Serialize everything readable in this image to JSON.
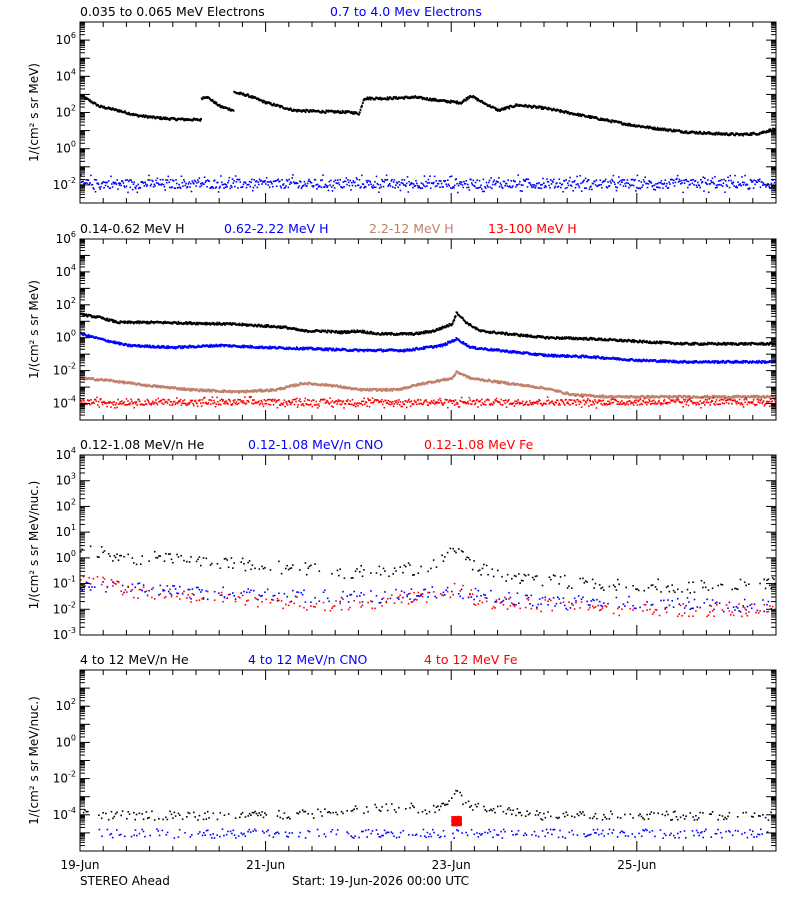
{
  "colors": {
    "black": "#000000",
    "blue": "#0000ff",
    "tan": "#c0806a",
    "red": "#ff0000"
  },
  "footer": {
    "spacecraft": "STEREO Ahead",
    "start": "Start: 19-Jun-2026 00:00 UTC"
  },
  "chart_data": [
    {
      "type": "scatter",
      "panel": "electrons",
      "legend": [
        {
          "text": "0.035 to 0.065 MeV Electrons",
          "color": "#000000"
        },
        {
          "text": "0.7 to 4.0 Mev Electrons",
          "color": "#0000ff"
        }
      ],
      "ylabel": "1/(cm² s sr MeV)",
      "yscale": "log",
      "ylim": [
        0.001,
        10000000.0
      ],
      "yticks": [
        {
          "value": 0.01,
          "base": "10",
          "exp": "-2"
        },
        {
          "value": 1.0,
          "base": "10",
          "exp": "0"
        },
        {
          "value": 100.0,
          "base": "10",
          "exp": "2"
        },
        {
          "value": 10000.0,
          "base": "10",
          "exp": "4"
        },
        {
          "value": 1000000.0,
          "base": "10",
          "exp": "6"
        }
      ],
      "xlim_days": [
        0,
        7.5
      ],
      "series": [
        {
          "name": "0.035 to 0.065 MeV Electrons",
          "color": "#000000",
          "points": [
            [
              0,
              1000
            ],
            [
              0.1,
              500
            ],
            [
              0.2,
              250
            ],
            [
              0.4,
              150
            ],
            [
              0.6,
              80
            ],
            [
              0.8,
              60
            ],
            [
              1.0,
              50
            ],
            [
              1.3,
              45
            ],
            [
              1.3,
              700
            ],
            [
              1.35,
              900
            ],
            [
              1.5,
              250
            ],
            [
              1.65,
              150
            ],
            [
              1.65,
              1500
            ],
            [
              1.8,
              1000
            ],
            [
              2.0,
              400
            ],
            [
              2.3,
              150
            ],
            [
              2.6,
              130
            ],
            [
              2.9,
              120
            ],
            [
              3.0,
              100
            ],
            [
              3.05,
              700
            ],
            [
              3.3,
              700
            ],
            [
              3.6,
              800
            ],
            [
              3.9,
              500
            ],
            [
              4.1,
              400
            ],
            [
              4.2,
              1000
            ],
            [
              4.3,
              500
            ],
            [
              4.5,
              150
            ],
            [
              4.7,
              300
            ],
            [
              5.0,
              200
            ],
            [
              5.3,
              100
            ],
            [
              5.6,
              50
            ],
            [
              5.9,
              25
            ],
            [
              6.2,
              15
            ],
            [
              6.5,
              10
            ],
            [
              6.8,
              8
            ],
            [
              7.1,
              7
            ],
            [
              7.3,
              8
            ],
            [
              7.5,
              15
            ]
          ]
        },
        {
          "name": "0.7 to 4.0 Mev Electrons",
          "color": "#0000ff",
          "points": [
            [
              0,
              0.02
            ],
            [
              1,
              0.02
            ],
            [
              2,
              0.019
            ],
            [
              3,
              0.018
            ],
            [
              4,
              0.018
            ],
            [
              5,
              0.017
            ],
            [
              6,
              0.017
            ],
            [
              7,
              0.016
            ],
            [
              7.5,
              0.016
            ]
          ],
          "scatter_band": [
            0.004,
            0.04
          ]
        }
      ]
    },
    {
      "type": "scatter",
      "panel": "protons",
      "legend": [
        {
          "text": "0.14-0.62 MeV H",
          "color": "#000000"
        },
        {
          "text": "0.62-2.22 MeV H",
          "color": "#0000ff"
        },
        {
          "text": "2.2-12 MeV H",
          "color": "#c0806a"
        },
        {
          "text": "13-100 MeV H",
          "color": "#ff0000"
        }
      ],
      "ylabel": "1/(cm² s sr MeV)",
      "yscale": "log",
      "ylim": [
        1e-05,
        1000000.0
      ],
      "yticks": [
        {
          "value": 0.0001,
          "base": "10",
          "exp": "-4"
        },
        {
          "value": 0.01,
          "base": "10",
          "exp": "-2"
        },
        {
          "value": 1.0,
          "base": "10",
          "exp": "0"
        },
        {
          "value": 100.0,
          "base": "10",
          "exp": "2"
        },
        {
          "value": 10000.0,
          "base": "10",
          "exp": "4"
        },
        {
          "value": 1000000.0,
          "base": "10",
          "exp": "6"
        }
      ],
      "xlim_days": [
        0,
        7.5
      ],
      "series": [
        {
          "name": "0.14-0.62 MeV H",
          "color": "#000000",
          "points": [
            [
              0,
              30
            ],
            [
              0.2,
              20
            ],
            [
              0.4,
              10
            ],
            [
              0.8,
              10
            ],
            [
              1.2,
              9
            ],
            [
              1.6,
              8
            ],
            [
              2.0,
              6
            ],
            [
              2.2,
              5
            ],
            [
              2.4,
              3
            ],
            [
              2.6,
              3
            ],
            [
              2.8,
              2.5
            ],
            [
              3.0,
              3
            ],
            [
              3.2,
              2
            ],
            [
              3.4,
              2
            ],
            [
              3.6,
              2
            ],
            [
              3.8,
              3
            ],
            [
              4.0,
              8
            ],
            [
              4.05,
              40
            ],
            [
              4.15,
              10
            ],
            [
              4.3,
              3
            ],
            [
              4.6,
              2
            ],
            [
              5.0,
              1.2
            ],
            [
              5.5,
              1
            ],
            [
              6.0,
              0.7
            ],
            [
              6.5,
              0.5
            ],
            [
              7.0,
              0.5
            ],
            [
              7.5,
              0.5
            ]
          ]
        },
        {
          "name": "0.62-2.22 MeV H",
          "color": "#0000ff",
          "points": [
            [
              0,
              2
            ],
            [
              0.2,
              1
            ],
            [
              0.5,
              0.4
            ],
            [
              1.0,
              0.3
            ],
            [
              1.5,
              0.4
            ],
            [
              2.0,
              0.3
            ],
            [
              2.5,
              0.25
            ],
            [
              3.0,
              0.2
            ],
            [
              3.5,
              0.2
            ],
            [
              3.9,
              0.4
            ],
            [
              4.05,
              1
            ],
            [
              4.2,
              0.3
            ],
            [
              4.5,
              0.2
            ],
            [
              5.0,
              0.1
            ],
            [
              5.5,
              0.08
            ],
            [
              6.0,
              0.05
            ],
            [
              6.5,
              0.04
            ],
            [
              7.0,
              0.04
            ],
            [
              7.5,
              0.04
            ]
          ]
        },
        {
          "name": "2.2-12 MeV H",
          "color": "#c0806a",
          "points": [
            [
              0,
              0.004
            ],
            [
              0.3,
              0.003
            ],
            [
              0.7,
              0.0015
            ],
            [
              1.2,
              0.0008
            ],
            [
              1.7,
              0.0006
            ],
            [
              2.1,
              0.0008
            ],
            [
              2.4,
              0.002
            ],
            [
              2.7,
              0.0015
            ],
            [
              3.0,
              0.0008
            ],
            [
              3.4,
              0.0008
            ],
            [
              3.7,
              0.002
            ],
            [
              4.0,
              0.004
            ],
            [
              4.05,
              0.01
            ],
            [
              4.2,
              0.004
            ],
            [
              4.6,
              0.002
            ],
            [
              5.0,
              0.001
            ],
            [
              5.3,
              0.0004
            ],
            [
              5.7,
              0.0003
            ],
            [
              6.5,
              0.0003
            ],
            [
              7.5,
              0.0003
            ]
          ]
        },
        {
          "name": "13-100 MeV H",
          "color": "#ff0000",
          "points": [
            [
              0,
              0.0002
            ],
            [
              2,
              0.0002
            ],
            [
              4,
              0.0002
            ],
            [
              6,
              0.0002
            ],
            [
              7.5,
              0.0002
            ]
          ],
          "scatter_band": [
            6e-05,
            0.0003
          ]
        }
      ]
    },
    {
      "type": "scatter",
      "panel": "low-energy-heavy",
      "legend": [
        {
          "text": "0.12-1.08 MeV/n He",
          "color": "#000000"
        },
        {
          "text": "0.12-1.08 MeV/n CNO",
          "color": "#0000ff"
        },
        {
          "text": "0.12-1.08 MeV Fe",
          "color": "#ff0000"
        }
      ],
      "ylabel": "1/(cm² s sr MeV/nuc.)",
      "yscale": "log",
      "ylim": [
        0.001,
        10000.0
      ],
      "yticks": [
        {
          "value": 0.001,
          "base": "10",
          "exp": "-3"
        },
        {
          "value": 0.01,
          "base": "10",
          "exp": "-2"
        },
        {
          "value": 0.1,
          "base": "10",
          "exp": "-1"
        },
        {
          "value": 1.0,
          "base": "10",
          "exp": "0"
        },
        {
          "value": 10.0,
          "base": "10",
          "exp": "1"
        },
        {
          "value": 100.0,
          "base": "10",
          "exp": "2"
        },
        {
          "value": 1000.0,
          "base": "10",
          "exp": "3"
        },
        {
          "value": 10000.0,
          "base": "10",
          "exp": "4"
        }
      ],
      "xlim_days": [
        0,
        7.5
      ],
      "series": [
        {
          "name": "0.12-1.08 MeV/n He",
          "color": "#000000",
          "points": [
            [
              0,
              3
            ],
            [
              0.2,
              2
            ],
            [
              0.4,
              1
            ],
            [
              0.6,
              0.7
            ],
            [
              0.8,
              1.2
            ],
            [
              1.0,
              1
            ],
            [
              1.3,
              0.8
            ],
            [
              1.6,
              0.7
            ],
            [
              2.0,
              0.5
            ],
            [
              2.4,
              0.4
            ],
            [
              2.8,
              0.3
            ],
            [
              3.2,
              0.3
            ],
            [
              3.6,
              0.4
            ],
            [
              3.9,
              0.8
            ],
            [
              4.05,
              2.5
            ],
            [
              4.2,
              0.6
            ],
            [
              4.5,
              0.2
            ],
            [
              5.0,
              0.15
            ],
            [
              5.5,
              0.1
            ],
            [
              6.0,
              0.1
            ],
            [
              6.5,
              0.08
            ],
            [
              7.0,
              0.1
            ],
            [
              7.5,
              0.1
            ]
          ]
        },
        {
          "name": "0.12-1.08 MeV/n CNO",
          "color": "#0000ff",
          "points": [
            [
              0,
              0.1
            ],
            [
              1,
              0.05
            ],
            [
              2,
              0.04
            ],
            [
              3,
              0.03
            ],
            [
              4,
              0.05
            ],
            [
              5,
              0.02
            ],
            [
              6,
              0.02
            ],
            [
              7,
              0.015
            ],
            [
              7.5,
              0.015
            ]
          ]
        },
        {
          "name": "0.12-1.08 MeV Fe",
          "color": "#ff0000",
          "points": [
            [
              0,
              0.15
            ],
            [
              0.3,
              0.1
            ],
            [
              0.6,
              0.05
            ],
            [
              1,
              0.04
            ],
            [
              2,
              0.02
            ],
            [
              3,
              0.015
            ],
            [
              4,
              0.05
            ],
            [
              4.05,
              0.1
            ],
            [
              4.3,
              0.02
            ],
            [
              5,
              0.015
            ],
            [
              6,
              0.01
            ],
            [
              7,
              0.01
            ],
            [
              7.5,
              0.01
            ]
          ]
        }
      ]
    },
    {
      "type": "scatter",
      "panel": "high-energy-heavy",
      "legend": [
        {
          "text": "4 to 12 MeV/n He",
          "color": "#000000"
        },
        {
          "text": "4 to 12 MeV/n CNO",
          "color": "#0000ff"
        },
        {
          "text": "4 to 12 MeV Fe",
          "color": "#ff0000"
        }
      ],
      "ylabel": "1/(cm² s sr MeV/nuc.)",
      "yscale": "log",
      "ylim": [
        1e-06,
        10000.0
      ],
      "yticks": [
        {
          "value": 0.0001,
          "base": "10",
          "exp": "-4"
        },
        {
          "value": 0.01,
          "base": "10",
          "exp": "-2"
        },
        {
          "value": 1.0,
          "base": "10",
          "exp": "0"
        },
        {
          "value": 100.0,
          "base": "10",
          "exp": "2"
        }
      ],
      "xlim_days": [
        0,
        7.5
      ],
      "series": [
        {
          "name": "4 to 12 MeV/n He",
          "color": "#000000",
          "points": [
            [
              0,
              0.0002
            ],
            [
              0.3,
              0.0001
            ],
            [
              1,
              0.0001
            ],
            [
              2,
              0.0001
            ],
            [
              2.5,
              0.00012
            ],
            [
              3,
              0.0002
            ],
            [
              3.5,
              0.0003
            ],
            [
              3.8,
              0.0002
            ],
            [
              3.95,
              0.0005
            ],
            [
              4.05,
              0.002
            ],
            [
              4.15,
              0.0004
            ],
            [
              4.5,
              0.0002
            ],
            [
              5,
              0.0001
            ],
            [
              6,
              0.0001
            ],
            [
              7,
              0.0001
            ],
            [
              7.5,
              0.0001
            ]
          ]
        },
        {
          "name": "4 to 12 MeV/n CNO",
          "color": "#0000ff",
          "points": [
            [
              0.2,
              1e-05
            ],
            [
              1.5,
              1e-05
            ],
            [
              2.9,
              1e-05
            ],
            [
              4.3,
              1e-05
            ],
            [
              5.5,
              1e-05
            ],
            [
              7.4,
              1e-05
            ]
          ]
        },
        {
          "name": "4 to 12 MeV Fe",
          "color": "#ff0000",
          "points": [
            [
              4.0,
              5e-05
            ],
            [
              4.1,
              5e-05
            ]
          ]
        }
      ]
    }
  ],
  "x_axis": {
    "tick_labels": [
      {
        "day": 0,
        "label": "19-Jun"
      },
      {
        "day": 2,
        "label": "21-Jun"
      },
      {
        "day": 4,
        "label": "23-Jun"
      },
      {
        "day": 6,
        "label": "25-Jun"
      }
    ]
  }
}
